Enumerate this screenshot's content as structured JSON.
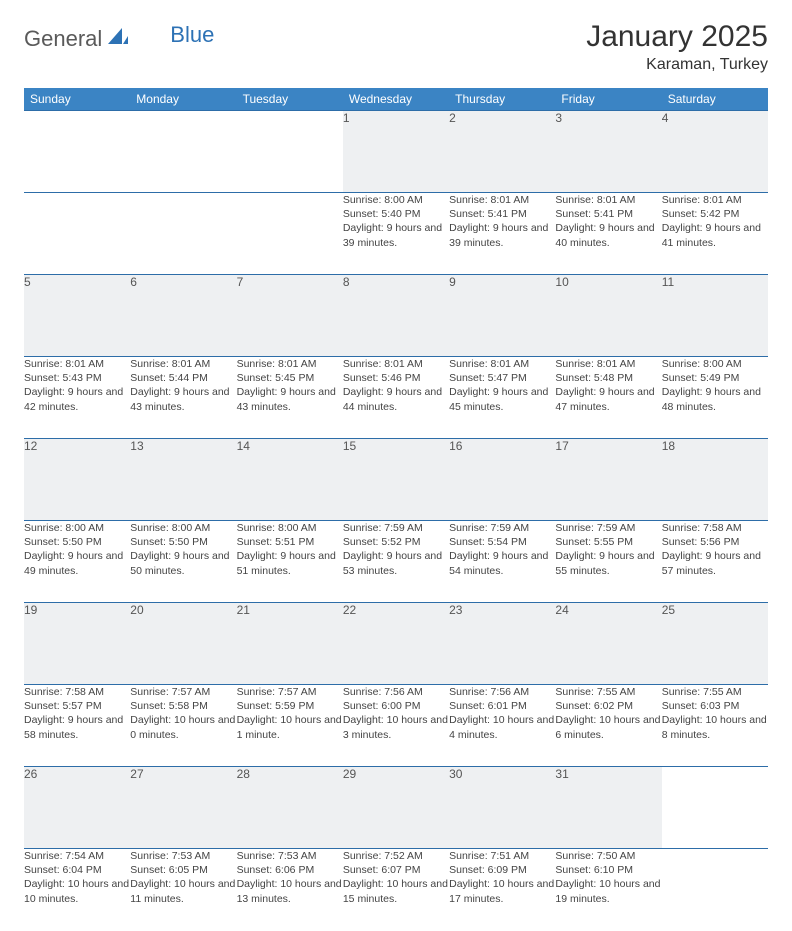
{
  "brand": {
    "general": "General",
    "blue": "Blue"
  },
  "title": "January 2025",
  "location": "Karaman, Turkey",
  "weekdays": [
    "Sunday",
    "Monday",
    "Tuesday",
    "Wednesday",
    "Thursday",
    "Friday",
    "Saturday"
  ],
  "colors": {
    "header_bg": "#3b84c4",
    "header_text": "#ffffff",
    "daynum_bg": "#eef0f2",
    "border": "#2d6da8",
    "brand_blue": "#2d72b5",
    "brand_gray": "#5a5a5a"
  },
  "weeks": [
    {
      "days": [
        {
          "num": "",
          "sunrise": "",
          "sunset": "",
          "daylight": ""
        },
        {
          "num": "",
          "sunrise": "",
          "sunset": "",
          "daylight": ""
        },
        {
          "num": "",
          "sunrise": "",
          "sunset": "",
          "daylight": ""
        },
        {
          "num": "1",
          "sunrise": "Sunrise: 8:00 AM",
          "sunset": "Sunset: 5:40 PM",
          "daylight": "Daylight: 9 hours and 39 minutes."
        },
        {
          "num": "2",
          "sunrise": "Sunrise: 8:01 AM",
          "sunset": "Sunset: 5:41 PM",
          "daylight": "Daylight: 9 hours and 39 minutes."
        },
        {
          "num": "3",
          "sunrise": "Sunrise: 8:01 AM",
          "sunset": "Sunset: 5:41 PM",
          "daylight": "Daylight: 9 hours and 40 minutes."
        },
        {
          "num": "4",
          "sunrise": "Sunrise: 8:01 AM",
          "sunset": "Sunset: 5:42 PM",
          "daylight": "Daylight: 9 hours and 41 minutes."
        }
      ]
    },
    {
      "days": [
        {
          "num": "5",
          "sunrise": "Sunrise: 8:01 AM",
          "sunset": "Sunset: 5:43 PM",
          "daylight": "Daylight: 9 hours and 42 minutes."
        },
        {
          "num": "6",
          "sunrise": "Sunrise: 8:01 AM",
          "sunset": "Sunset: 5:44 PM",
          "daylight": "Daylight: 9 hours and 43 minutes."
        },
        {
          "num": "7",
          "sunrise": "Sunrise: 8:01 AM",
          "sunset": "Sunset: 5:45 PM",
          "daylight": "Daylight: 9 hours and 43 minutes."
        },
        {
          "num": "8",
          "sunrise": "Sunrise: 8:01 AM",
          "sunset": "Sunset: 5:46 PM",
          "daylight": "Daylight: 9 hours and 44 minutes."
        },
        {
          "num": "9",
          "sunrise": "Sunrise: 8:01 AM",
          "sunset": "Sunset: 5:47 PM",
          "daylight": "Daylight: 9 hours and 45 minutes."
        },
        {
          "num": "10",
          "sunrise": "Sunrise: 8:01 AM",
          "sunset": "Sunset: 5:48 PM",
          "daylight": "Daylight: 9 hours and 47 minutes."
        },
        {
          "num": "11",
          "sunrise": "Sunrise: 8:00 AM",
          "sunset": "Sunset: 5:49 PM",
          "daylight": "Daylight: 9 hours and 48 minutes."
        }
      ]
    },
    {
      "days": [
        {
          "num": "12",
          "sunrise": "Sunrise: 8:00 AM",
          "sunset": "Sunset: 5:50 PM",
          "daylight": "Daylight: 9 hours and 49 minutes."
        },
        {
          "num": "13",
          "sunrise": "Sunrise: 8:00 AM",
          "sunset": "Sunset: 5:50 PM",
          "daylight": "Daylight: 9 hours and 50 minutes."
        },
        {
          "num": "14",
          "sunrise": "Sunrise: 8:00 AM",
          "sunset": "Sunset: 5:51 PM",
          "daylight": "Daylight: 9 hours and 51 minutes."
        },
        {
          "num": "15",
          "sunrise": "Sunrise: 7:59 AM",
          "sunset": "Sunset: 5:52 PM",
          "daylight": "Daylight: 9 hours and 53 minutes."
        },
        {
          "num": "16",
          "sunrise": "Sunrise: 7:59 AM",
          "sunset": "Sunset: 5:54 PM",
          "daylight": "Daylight: 9 hours and 54 minutes."
        },
        {
          "num": "17",
          "sunrise": "Sunrise: 7:59 AM",
          "sunset": "Sunset: 5:55 PM",
          "daylight": "Daylight: 9 hours and 55 minutes."
        },
        {
          "num": "18",
          "sunrise": "Sunrise: 7:58 AM",
          "sunset": "Sunset: 5:56 PM",
          "daylight": "Daylight: 9 hours and 57 minutes."
        }
      ]
    },
    {
      "days": [
        {
          "num": "19",
          "sunrise": "Sunrise: 7:58 AM",
          "sunset": "Sunset: 5:57 PM",
          "daylight": "Daylight: 9 hours and 58 minutes."
        },
        {
          "num": "20",
          "sunrise": "Sunrise: 7:57 AM",
          "sunset": "Sunset: 5:58 PM",
          "daylight": "Daylight: 10 hours and 0 minutes."
        },
        {
          "num": "21",
          "sunrise": "Sunrise: 7:57 AM",
          "sunset": "Sunset: 5:59 PM",
          "daylight": "Daylight: 10 hours and 1 minute."
        },
        {
          "num": "22",
          "sunrise": "Sunrise: 7:56 AM",
          "sunset": "Sunset: 6:00 PM",
          "daylight": "Daylight: 10 hours and 3 minutes."
        },
        {
          "num": "23",
          "sunrise": "Sunrise: 7:56 AM",
          "sunset": "Sunset: 6:01 PM",
          "daylight": "Daylight: 10 hours and 4 minutes."
        },
        {
          "num": "24",
          "sunrise": "Sunrise: 7:55 AM",
          "sunset": "Sunset: 6:02 PM",
          "daylight": "Daylight: 10 hours and 6 minutes."
        },
        {
          "num": "25",
          "sunrise": "Sunrise: 7:55 AM",
          "sunset": "Sunset: 6:03 PM",
          "daylight": "Daylight: 10 hours and 8 minutes."
        }
      ]
    },
    {
      "days": [
        {
          "num": "26",
          "sunrise": "Sunrise: 7:54 AM",
          "sunset": "Sunset: 6:04 PM",
          "daylight": "Daylight: 10 hours and 10 minutes."
        },
        {
          "num": "27",
          "sunrise": "Sunrise: 7:53 AM",
          "sunset": "Sunset: 6:05 PM",
          "daylight": "Daylight: 10 hours and 11 minutes."
        },
        {
          "num": "28",
          "sunrise": "Sunrise: 7:53 AM",
          "sunset": "Sunset: 6:06 PM",
          "daylight": "Daylight: 10 hours and 13 minutes."
        },
        {
          "num": "29",
          "sunrise": "Sunrise: 7:52 AM",
          "sunset": "Sunset: 6:07 PM",
          "daylight": "Daylight: 10 hours and 15 minutes."
        },
        {
          "num": "30",
          "sunrise": "Sunrise: 7:51 AM",
          "sunset": "Sunset: 6:09 PM",
          "daylight": "Daylight: 10 hours and 17 minutes."
        },
        {
          "num": "31",
          "sunrise": "Sunrise: 7:50 AM",
          "sunset": "Sunset: 6:10 PM",
          "daylight": "Daylight: 10 hours and 19 minutes."
        },
        {
          "num": "",
          "sunrise": "",
          "sunset": "",
          "daylight": ""
        }
      ]
    }
  ]
}
